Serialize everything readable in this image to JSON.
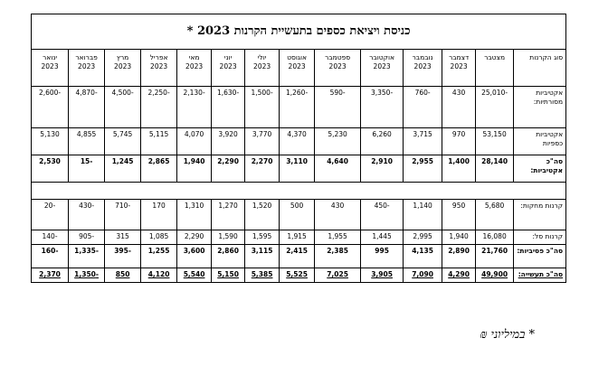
{
  "title": "כניסת ויציאת כספים בתעשיית הקרנות 2023 *",
  "table": {
    "headers": [
      {
        "text": "סוג הקרנות"
      },
      {
        "text": "מצטבר"
      },
      {
        "text": "דצמבר",
        "year": "2023"
      },
      {
        "text": "נובמבר",
        "year": "2023"
      },
      {
        "text": "אוקטובר",
        "year": "2023"
      },
      {
        "text": "ספטמבר",
        "year": "2023"
      },
      {
        "text": "אוגוסט",
        "year": "2023"
      },
      {
        "text": "יולי",
        "year": "2023"
      },
      {
        "text": "יוני",
        "year": "2023"
      },
      {
        "text": "מאי",
        "year": "2023"
      },
      {
        "text": "אפריל",
        "year": "2023"
      },
      {
        "text": "מרץ",
        "year": "2023"
      },
      {
        "text": "פברואר",
        "year": "2023"
      },
      {
        "text": "ינואר",
        "year": "2023"
      }
    ],
    "groups": [
      [
        {
          "label": "אקטיביות מסורתיות:",
          "cells": [
            "-25,010",
            "430",
            "-760",
            "-3,350",
            "-590",
            "-1,260",
            "-1,500",
            "-1,630",
            "-2,130",
            "-2,250",
            "-4,500",
            "-4,870",
            "-2,600"
          ]
        },
        {
          "label": "אקטיביות כספיות",
          "cells": [
            "53,150",
            "970",
            "3,715",
            "6,260",
            "5,230",
            "4,370",
            "3,770",
            "3,920",
            "4,070",
            "5,115",
            "5,745",
            "4,855",
            "5,130"
          ]
        },
        {
          "label": "סה\"כ אקטיביות:",
          "bold": true,
          "cells": [
            "28,140",
            "1,400",
            "2,955",
            "2,910",
            "4,640",
            "3,110",
            "2,270",
            "2,290",
            "1,940",
            "2,865",
            "1,245",
            "-15",
            "2,530"
          ]
        }
      ],
      [
        {
          "label": "קרנות מחקות:",
          "cells": [
            "5,680",
            "950",
            "1,140",
            "-450",
            "430",
            "500",
            "1,520",
            "1,270",
            "1,310",
            "170",
            "-710",
            "-430",
            "-20"
          ]
        },
        {
          "label": "קרנות סל:",
          "cells": [
            "16,080",
            "1,940",
            "2,995",
            "1,445",
            "1,955",
            "1,915",
            "1,595",
            "1,590",
            "2,290",
            "1,085",
            "315",
            "-905",
            "-140"
          ]
        },
        {
          "label": "סה\"כ פסיביות:",
          "bold": true,
          "cells": [
            "21,760",
            "2,890",
            "4,135",
            "995",
            "2,385",
            "2,415",
            "3,115",
            "2,860",
            "3,600",
            "1,255",
            "-395",
            "-1,335",
            "-160"
          ]
        },
        {
          "label": "סה\"כ תעשייה:",
          "bold": true,
          "underline": true,
          "cells": [
            "49,900",
            "4,290",
            "7,090",
            "3,905",
            "7,025",
            "5,525",
            "5,385",
            "5,150",
            "5,540",
            "4,120",
            "850",
            "-1,350",
            "2,370"
          ]
        }
      ]
    ]
  },
  "footnote": "* במיליוני ₪"
}
